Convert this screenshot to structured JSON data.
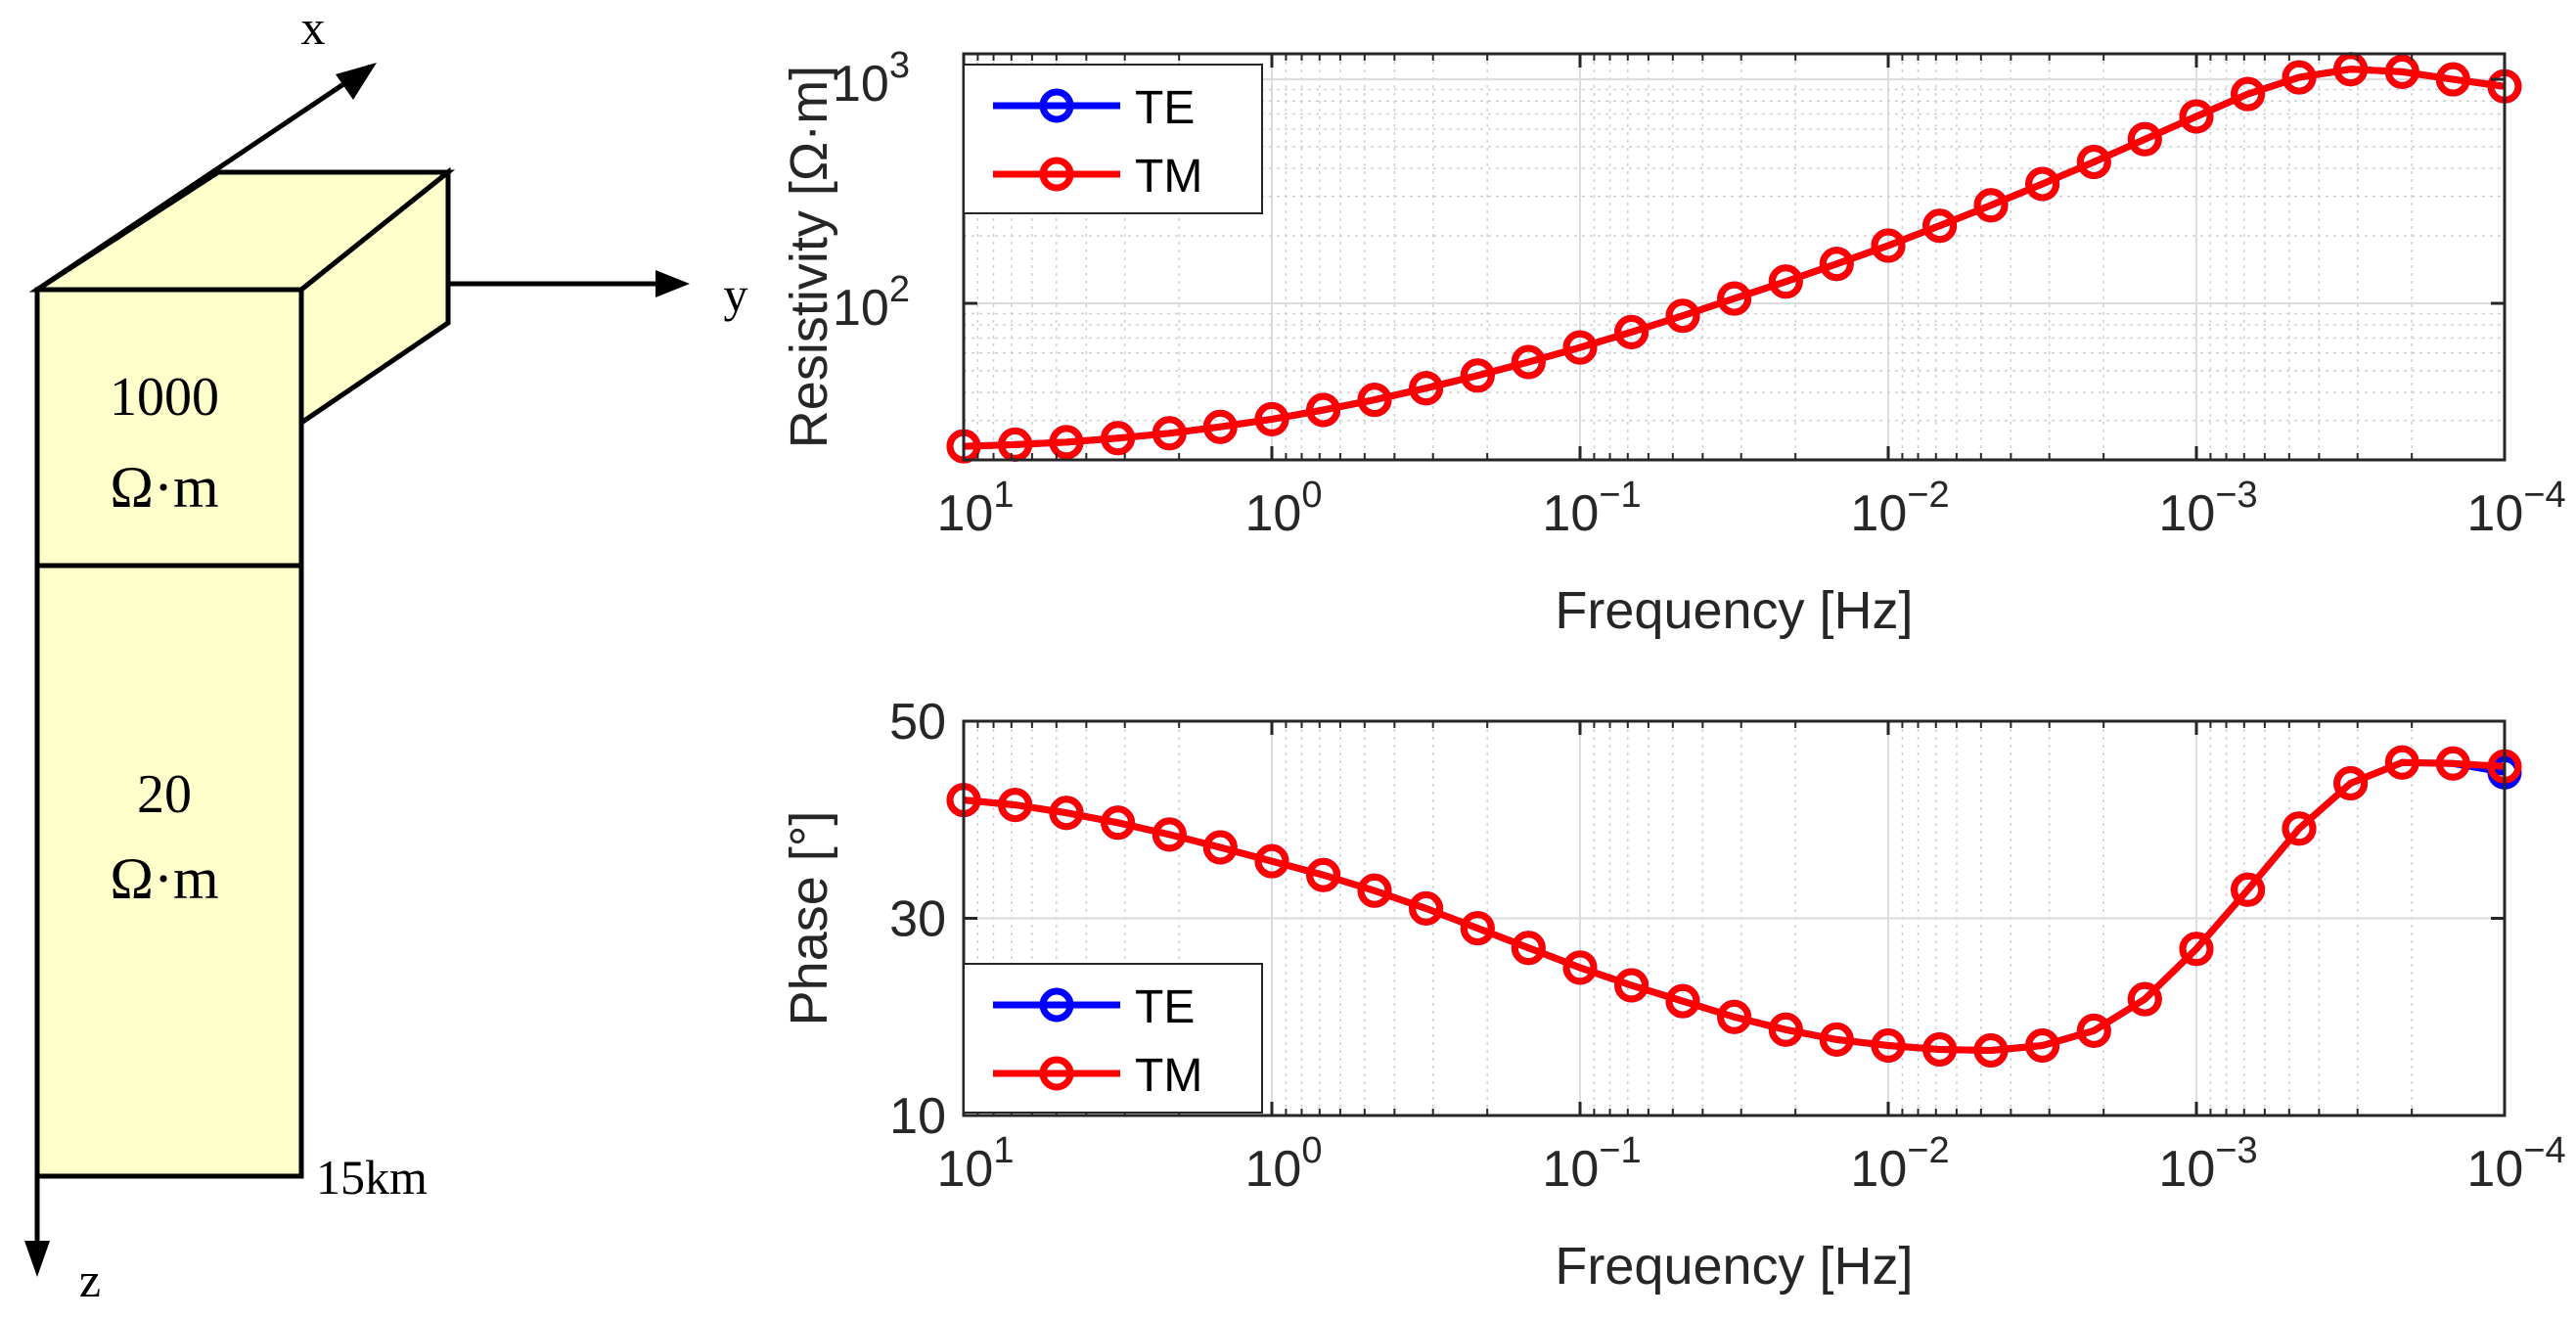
{
  "model": {
    "axis_x": "x",
    "axis_y": "y",
    "axis_z": "z",
    "layer1_value": "1000",
    "layer1_unit": "Ω·m",
    "layer2_value": "20",
    "layer2_unit": "Ω·m",
    "depth_label": "15km",
    "fill_color": "#ffffcc"
  },
  "chart_data": [
    {
      "type": "line",
      "xscale": "log",
      "yscale": "log",
      "xdir": "reverse",
      "xlim": [
        10,
        0.0001
      ],
      "ylim": [
        20,
        1300
      ],
      "xlabel": "Frequency [Hz]",
      "ylabel": "Resistivity [Ω·m]",
      "xtick_labels": [
        {
          "base": "10",
          "exp": "1"
        },
        {
          "base": "10",
          "exp": "0"
        },
        {
          "base": "10",
          "exp": "−1"
        },
        {
          "base": "10",
          "exp": "−2"
        },
        {
          "base": "10",
          "exp": "−3"
        },
        {
          "base": "10",
          "exp": "−4"
        }
      ],
      "ytick_labels": [
        {
          "base": "10",
          "exp": "2"
        },
        {
          "base": "10",
          "exp": "3"
        }
      ],
      "legend": [
        "TE",
        "TM"
      ],
      "legend_position": "top-left",
      "grid": true,
      "colors": {
        "TE": "#0000ff",
        "TM": "#ff0000"
      },
      "x": [
        10,
        6.81,
        4.64,
        3.16,
        2.15,
        1.47,
        1.0,
        0.681,
        0.464,
        0.316,
        0.215,
        0.147,
        0.1,
        0.0681,
        0.0464,
        0.0316,
        0.0215,
        0.0147,
        0.01,
        0.00681,
        0.00464,
        0.00316,
        0.00215,
        0.00147,
        0.001,
        0.000681,
        0.000464,
        0.000316,
        0.000215,
        0.000147,
        0.0001
      ],
      "series": [
        {
          "name": "TE",
          "values": [
            23.0,
            23.4,
            24.0,
            25.0,
            26.3,
            28.1,
            30.4,
            33.4,
            37.1,
            41.8,
            47.6,
            54.7,
            63.5,
            74.4,
            88.0,
            105,
            125,
            150,
            181,
            222,
            274,
            341,
            428,
            540,
            683,
            860,
            1020,
            1110,
            1080,
            1000,
            930
          ]
        },
        {
          "name": "TM",
          "values": [
            23.0,
            23.4,
            24.0,
            25.0,
            26.3,
            28.1,
            30.4,
            33.4,
            37.1,
            41.8,
            47.6,
            54.7,
            63.5,
            74.4,
            88.0,
            105,
            125,
            150,
            181,
            222,
            274,
            341,
            428,
            540,
            683,
            860,
            1020,
            1110,
            1080,
            1000,
            930
          ]
        }
      ]
    },
    {
      "type": "line",
      "xscale": "log",
      "yscale": "linear",
      "xdir": "reverse",
      "xlim": [
        10,
        0.0001
      ],
      "ylim": [
        10,
        50
      ],
      "xlabel": "Frequency [Hz]",
      "ylabel": "Phase [°]",
      "xtick_labels": [
        {
          "base": "10",
          "exp": "1"
        },
        {
          "base": "10",
          "exp": "0"
        },
        {
          "base": "10",
          "exp": "−1"
        },
        {
          "base": "10",
          "exp": "−2"
        },
        {
          "base": "10",
          "exp": "−3"
        },
        {
          "base": "10",
          "exp": "−4"
        }
      ],
      "ytick_labels": [
        "10",
        "30",
        "50"
      ],
      "ytick_values": [
        10,
        30,
        50
      ],
      "legend": [
        "TE",
        "TM"
      ],
      "legend_position": "bottom-left",
      "grid": true,
      "colors": {
        "TE": "#0000ff",
        "TM": "#ff0000"
      },
      "x": [
        10,
        6.81,
        4.64,
        3.16,
        2.15,
        1.47,
        1.0,
        0.681,
        0.464,
        0.316,
        0.215,
        0.147,
        0.1,
        0.0681,
        0.0464,
        0.0316,
        0.0215,
        0.0147,
        0.01,
        0.00681,
        0.00464,
        0.00316,
        0.00215,
        0.00147,
        0.001,
        0.000681,
        0.000464,
        0.000316,
        0.000215,
        0.000147,
        0.0001
      ],
      "series": [
        {
          "name": "TE",
          "values": [
            42.0,
            41.5,
            40.7,
            39.7,
            38.5,
            37.2,
            35.8,
            34.4,
            32.8,
            31.0,
            29.0,
            27.0,
            25.0,
            23.2,
            21.6,
            20.0,
            18.7,
            17.7,
            17.1,
            16.7,
            16.6,
            17.1,
            18.6,
            21.8,
            26.9,
            32.9,
            39.1,
            43.7,
            45.8,
            45.7,
            44.8
          ]
        },
        {
          "name": "TM",
          "values": [
            42.0,
            41.5,
            40.7,
            39.7,
            38.5,
            37.2,
            35.8,
            34.4,
            32.8,
            31.0,
            29.0,
            27.0,
            25.0,
            23.2,
            21.6,
            20.0,
            18.7,
            17.7,
            17.1,
            16.7,
            16.6,
            17.1,
            18.6,
            21.8,
            26.9,
            32.9,
            39.1,
            43.7,
            45.8,
            45.7,
            45.4
          ]
        }
      ]
    }
  ]
}
